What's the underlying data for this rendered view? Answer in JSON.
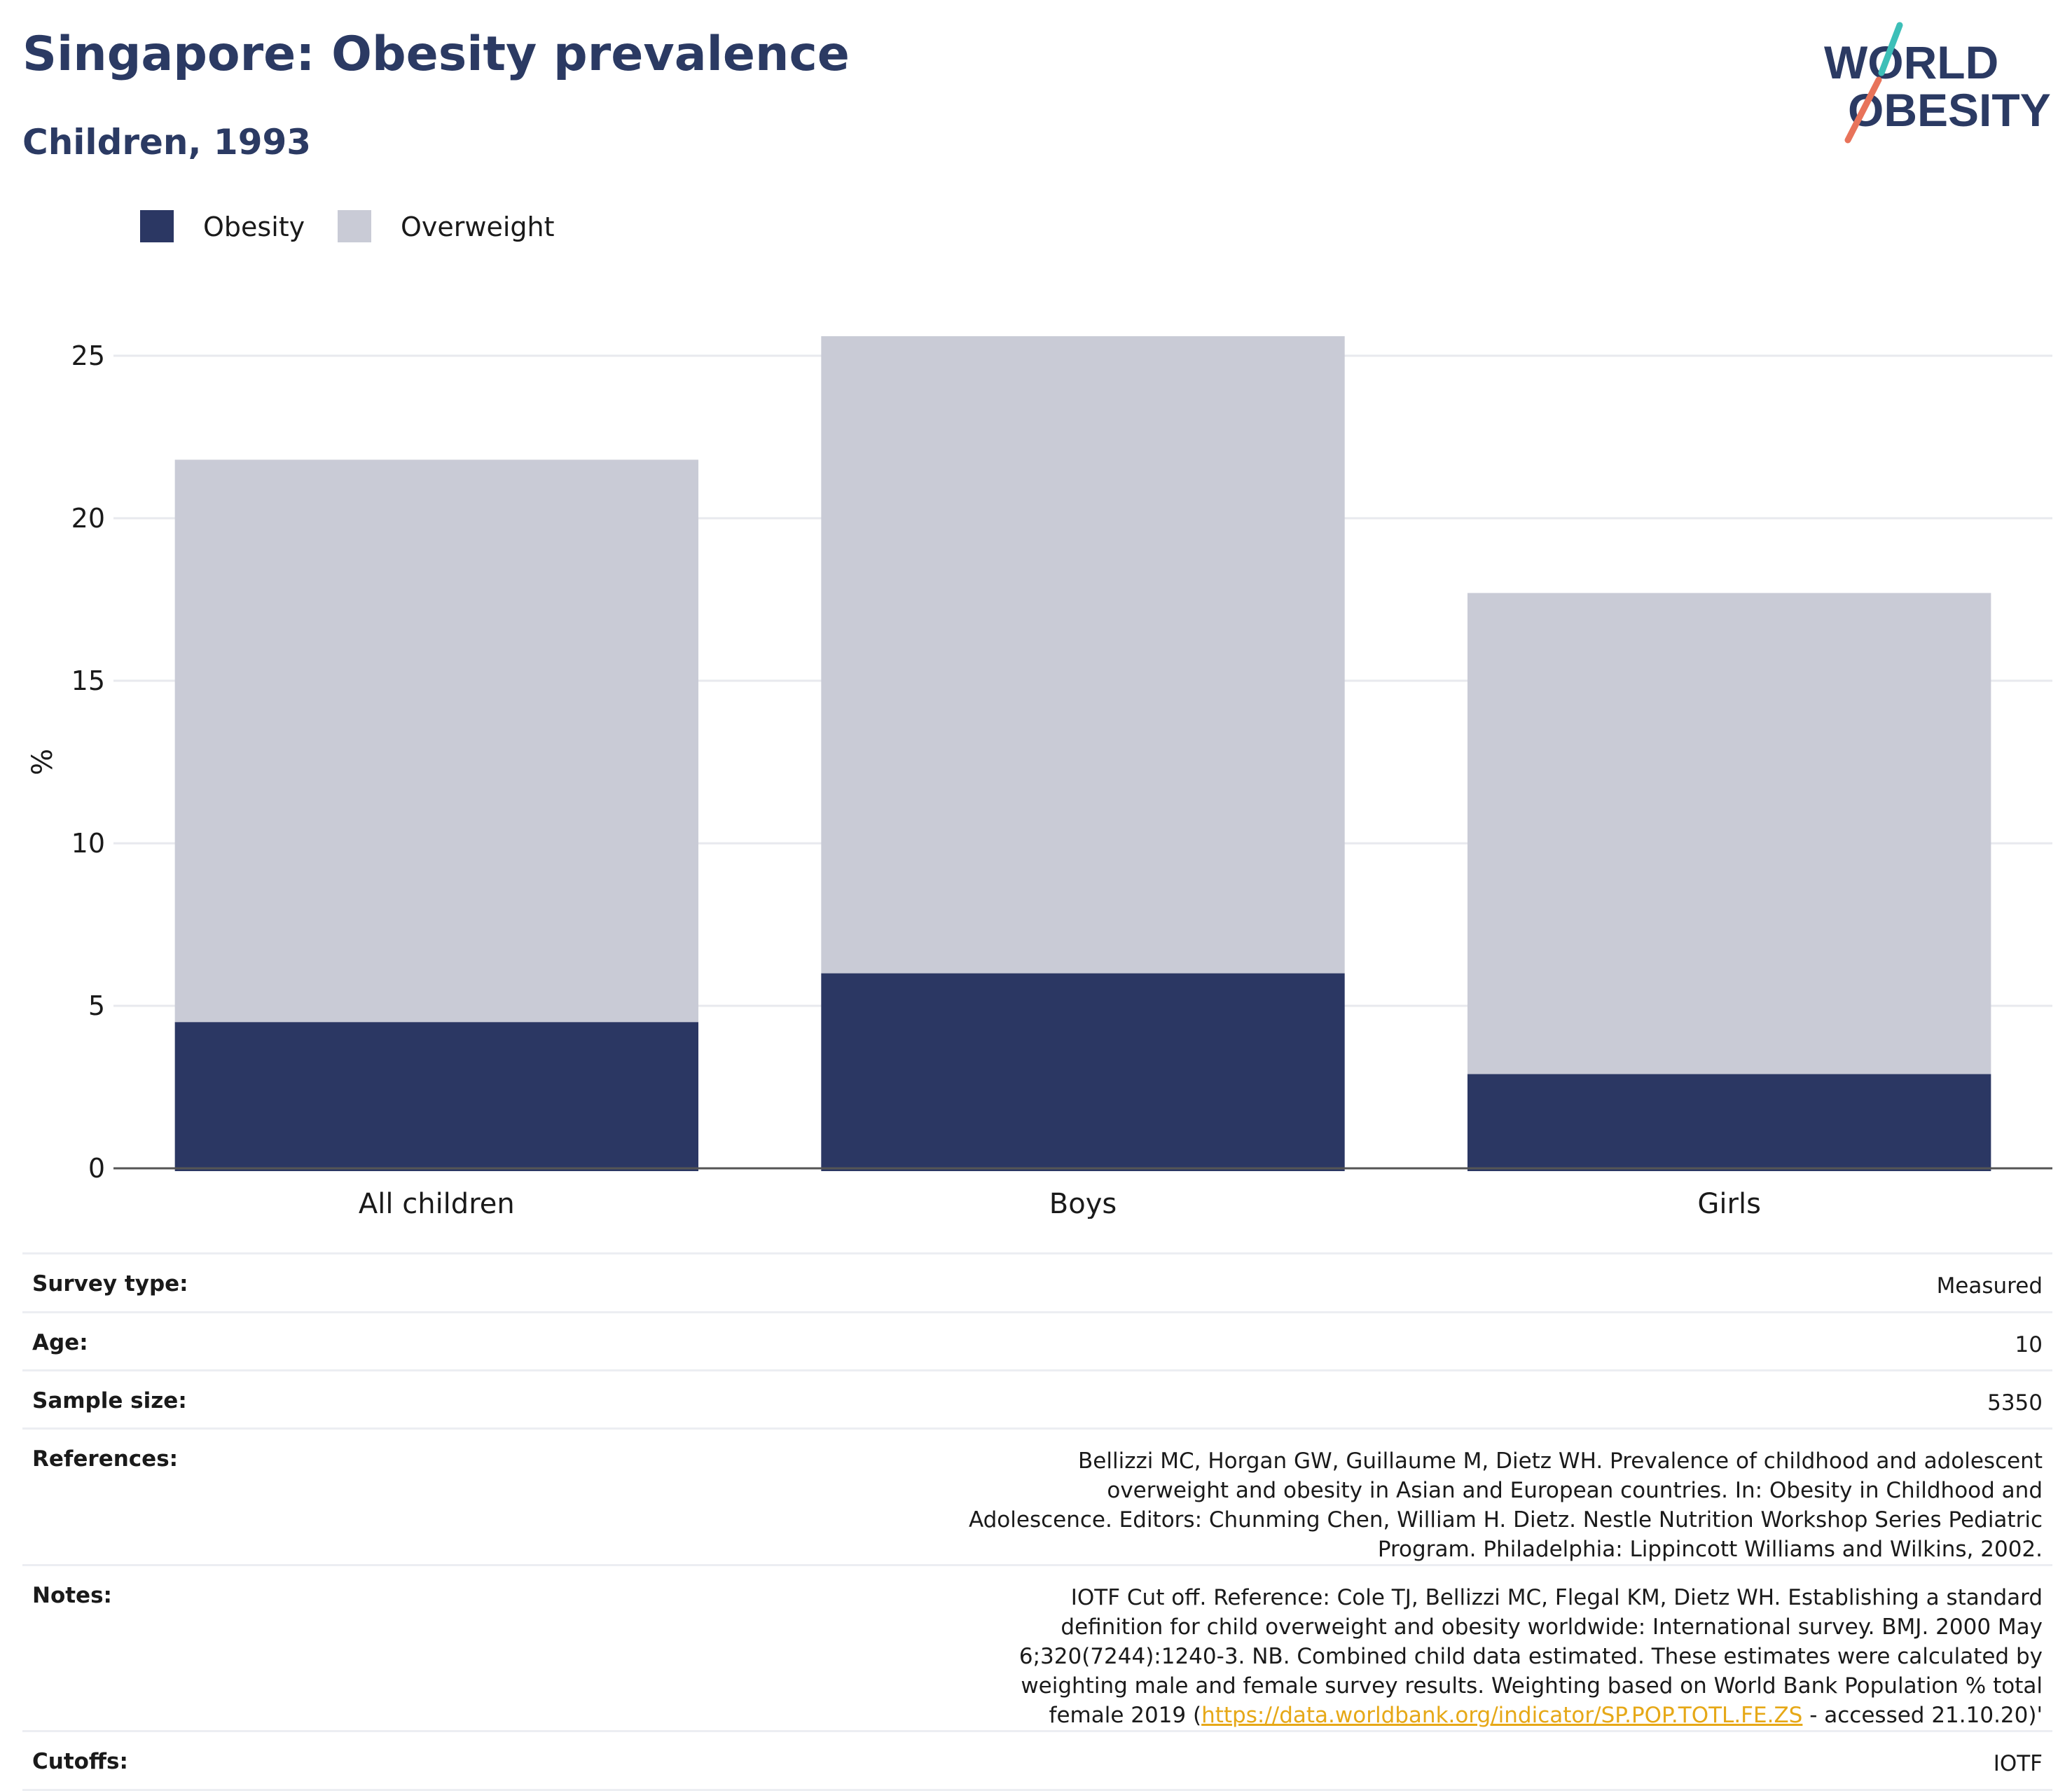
{
  "header": {
    "title": "Singapore: Obesity prevalence",
    "subtitle": "Children, 1993"
  },
  "logo": {
    "line1": "WORLD",
    "line2": "OBESITY"
  },
  "colors": {
    "obesity": "#2b3763",
    "overweight": "#c9cbd6",
    "title": "#2b3a63",
    "grid": "#e8e9ee",
    "axis": "#555555",
    "link": "#e6a817",
    "logo_teal": "#3dbfb8",
    "logo_coral": "#e8735a"
  },
  "chart_data": {
    "type": "bar",
    "stacked": true,
    "categories": [
      "All children",
      "Boys",
      "Girls"
    ],
    "series": [
      {
        "name": "Obesity",
        "values": [
          4.5,
          6.0,
          2.9
        ]
      },
      {
        "name": "Overweight",
        "values": [
          17.3,
          19.6,
          14.8
        ]
      }
    ],
    "title": "",
    "xlabel": "",
    "ylabel": "%",
    "ylim": [
      0,
      25.6
    ],
    "yticks": [
      0,
      5,
      10,
      15,
      20,
      25
    ],
    "grid": true,
    "legend": "top-left"
  },
  "info": [
    {
      "key": "Survey type:",
      "value": "Measured"
    },
    {
      "key": "Age:",
      "value": "10"
    },
    {
      "key": "Sample size:",
      "value": "5350"
    },
    {
      "key": "References:",
      "value": "Bellizzi MC, Horgan GW, Guillaume M, Dietz WH. Prevalence of childhood and adolescent overweight and obesity in Asian and European countries. In: Obesity in Childhood and Adolescence. Editors: Chunming Chen, William H. Dietz. Nestle Nutrition Workshop Series Pediatric Program. Philadelphia: Lippincott Williams and Wilkins, 2002."
    },
    {
      "key": "Notes:",
      "value": "IOTF Cut off. Reference: Cole TJ, Bellizzi MC, Flegal KM, Dietz WH. Establishing a standard definition for child overweight and obesity worldwide: International survey. BMJ. 2000 May 6;320(7244):1240-3. NB. Combined child data estimated. These estimates were calculated by weighting male and female survey results. Weighting based on World Bank Population % total female 2019 (",
      "link": "https://data.worldbank.org/indicator/SP.POP.TOTL.FE.ZS",
      "suffix": " - accessed 21.10.20)'"
    },
    {
      "key": "Cutoffs:",
      "value": "IOTF"
    }
  ]
}
